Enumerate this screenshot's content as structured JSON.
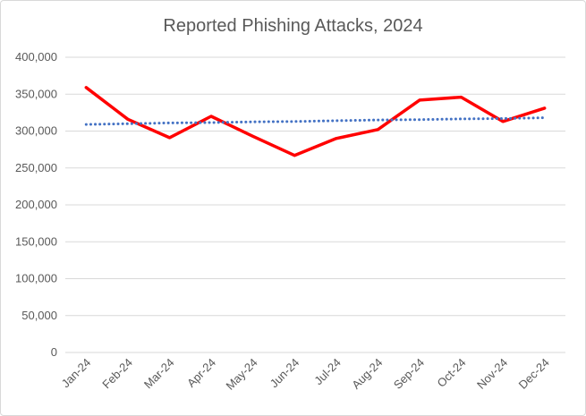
{
  "chart_data": {
    "type": "line",
    "title": "Reported Phishing Attacks, 2024",
    "xlabel": "",
    "ylabel": "",
    "categories": [
      "Jan-24",
      "Feb-24",
      "Mar-24",
      "Apr-24",
      "May-24",
      "Jun-24",
      "Jul-24",
      "Aug-24",
      "Sep-24",
      "Oct-24",
      "Nov-24",
      "Dec-24"
    ],
    "series": [
      {
        "values": [
          359000,
          316000,
          291000,
          320000,
          293000,
          267000,
          290000,
          302000,
          342000,
          346000,
          313000,
          331000
        ],
        "color": "#ff0000",
        "style": "solid"
      },
      {
        "values": [
          309000,
          310000,
          311000,
          311500,
          312500,
          313000,
          314000,
          315000,
          315500,
          316500,
          317000,
          318000
        ],
        "color": "#4472c4",
        "style": "dotted",
        "kind": "linear trendline"
      }
    ],
    "ylim": [
      0,
      400000
    ],
    "yticks": [
      0,
      50000,
      100000,
      150000,
      200000,
      250000,
      300000,
      350000,
      400000
    ],
    "grid": true,
    "legend": "none"
  }
}
